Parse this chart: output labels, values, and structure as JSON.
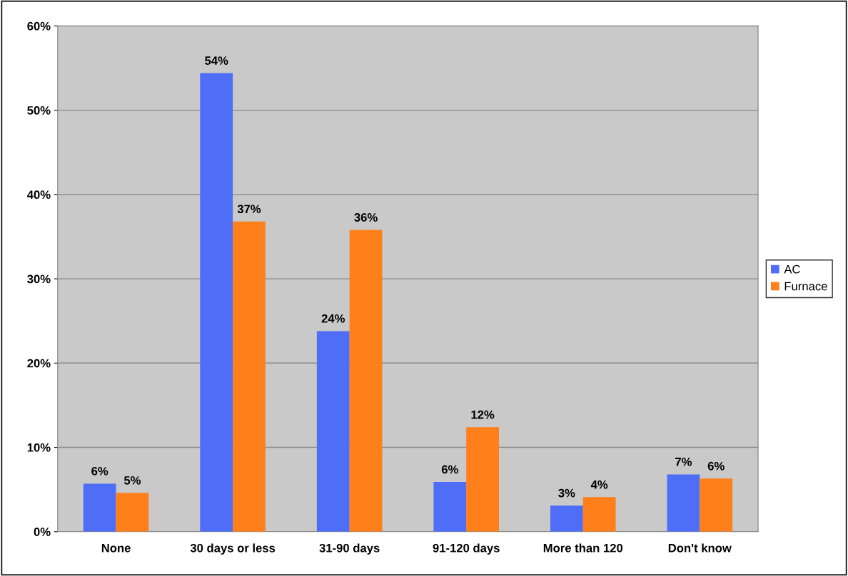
{
  "chart_data": {
    "type": "bar",
    "categories": [
      "None",
      "30 days or less",
      "31-90 days",
      "91-120 days",
      "More than 120",
      "Don't know"
    ],
    "series": [
      {
        "name": "AC",
        "color": "#4f6ef7",
        "values": [
          5.7,
          54.4,
          23.8,
          5.9,
          3.1,
          6.8
        ],
        "value_labels": [
          "6%",
          "54%",
          "24%",
          "6%",
          "3%",
          "7%"
        ]
      },
      {
        "name": "Furnace",
        "color": "#ff7f1a",
        "values": [
          4.6,
          36.8,
          35.8,
          12.4,
          4.1,
          6.3
        ],
        "value_labels": [
          "5%",
          "37%",
          "36%",
          "12%",
          "4%",
          "6%"
        ]
      }
    ],
    "ylim": [
      0,
      60
    ],
    "yticks": [
      {
        "value": 0,
        "label": "0%"
      },
      {
        "value": 10,
        "label": "10%"
      },
      {
        "value": 20,
        "label": "20%"
      },
      {
        "value": 30,
        "label": "30%"
      },
      {
        "value": 40,
        "label": "40%"
      },
      {
        "value": 50,
        "label": "50%"
      },
      {
        "value": 60,
        "label": "60%"
      }
    ],
    "grid": "y",
    "legend": "right"
  }
}
